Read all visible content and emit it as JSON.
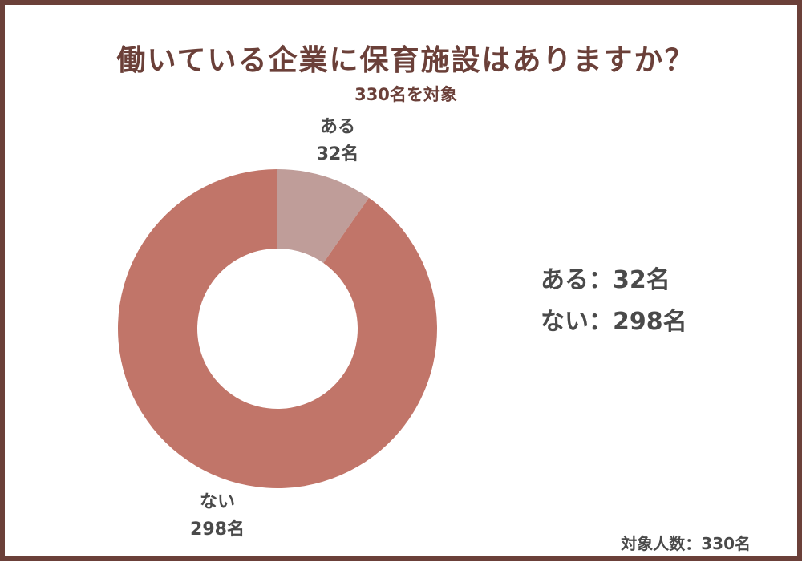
{
  "title": "働いている企業に保育施設はありますか？",
  "subtitle": "330名を対象",
  "footnote": "対象人数：330名",
  "chart_data": {
    "type": "pie",
    "donut": true,
    "slices": [
      {
        "label": "ある",
        "value": 32,
        "value_text": "32名",
        "color": "#bf9d99"
      },
      {
        "label": "ない",
        "value": 298,
        "value_text": "298名",
        "color": "#c17569"
      }
    ],
    "total": 330
  },
  "legend": [
    {
      "label": "ある",
      "sep": "：",
      "value_text": "32名"
    },
    {
      "label": "ない",
      "sep": "：",
      "value_text": "298名"
    }
  ]
}
